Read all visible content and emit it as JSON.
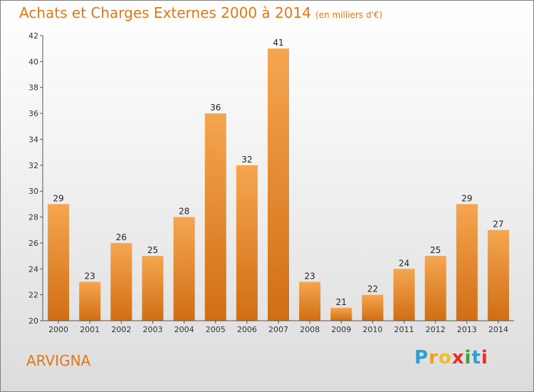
{
  "title": "Achats et Charges Externes 2000 à 2014",
  "unit": "(en milliers d'€)",
  "commune": "ARVIGNA",
  "logo": {
    "letters": [
      "P",
      "r",
      "o",
      "x",
      "i",
      "t",
      "i"
    ],
    "colors": [
      "#2a9fd8",
      "#e8a020",
      "#f0c020",
      "#e03030",
      "#3aa040",
      "#2a9fd8",
      "#e03030"
    ]
  },
  "colors": {
    "bar_top": "#f5a650",
    "bar_bottom": "#d06e14",
    "title": "#e07818"
  },
  "chart_data": {
    "type": "bar",
    "categories": [
      "2000",
      "2001",
      "2002",
      "2003",
      "2004",
      "2005",
      "2006",
      "2007",
      "2008",
      "2009",
      "2010",
      "2011",
      "2012",
      "2013",
      "2014"
    ],
    "values": [
      29,
      23,
      26,
      25,
      28,
      36,
      32,
      41,
      23,
      21,
      22,
      24,
      25,
      29,
      27
    ],
    "title": "Achats et Charges Externes 2000 à 2014",
    "ylim": [
      20,
      42
    ],
    "yticks": [
      20,
      22,
      24,
      26,
      28,
      30,
      32,
      34,
      36,
      38,
      40,
      42
    ],
    "grid": false,
    "legend": "none"
  }
}
